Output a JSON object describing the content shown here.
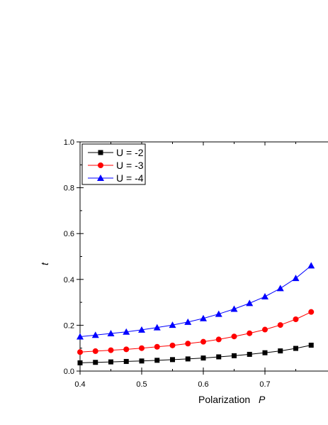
{
  "chart_data": {
    "type": "line",
    "xlabel": "Polarization",
    "xlabel_symbol": "P",
    "ylabel": "t",
    "xlim": [
      0.4,
      0.78
    ],
    "ylim": [
      0.0,
      1.0
    ],
    "xticks": [
      0.4,
      0.5,
      0.6,
      0.7
    ],
    "xtick_labels": [
      "0.4",
      "0.5",
      "0.6",
      "0.7"
    ],
    "yticks": [
      0.0,
      0.2,
      0.4,
      0.6,
      0.8,
      1.0
    ],
    "ytick_labels": [
      "0.0",
      "0.2",
      "0.4",
      "0.6",
      "0.8",
      "1.0"
    ],
    "grid": false,
    "legend_position": "top-left",
    "x": [
      0.4,
      0.425,
      0.45,
      0.475,
      0.5,
      0.525,
      0.55,
      0.575,
      0.6,
      0.625,
      0.65,
      0.675,
      0.7,
      0.725,
      0.75,
      0.775
    ],
    "series": [
      {
        "name": "U = -2",
        "marker": "square",
        "color": "#000000",
        "values": [
          0.036,
          0.038,
          0.04,
          0.042,
          0.044,
          0.047,
          0.05,
          0.053,
          0.057,
          0.062,
          0.067,
          0.073,
          0.08,
          0.088,
          0.099,
          0.113
        ]
      },
      {
        "name": "U = -3",
        "marker": "circle",
        "color": "#ff0000",
        "values": [
          0.083,
          0.087,
          0.091,
          0.095,
          0.1,
          0.106,
          0.112,
          0.12,
          0.128,
          0.138,
          0.151,
          0.165,
          0.181,
          0.201,
          0.226,
          0.258
        ]
      },
      {
        "name": "U = -4",
        "marker": "triangle",
        "color": "#0000ff",
        "values": [
          0.15,
          0.157,
          0.164,
          0.171,
          0.18,
          0.19,
          0.201,
          0.214,
          0.23,
          0.249,
          0.271,
          0.296,
          0.325,
          0.361,
          0.405,
          0.46
        ]
      }
    ]
  }
}
